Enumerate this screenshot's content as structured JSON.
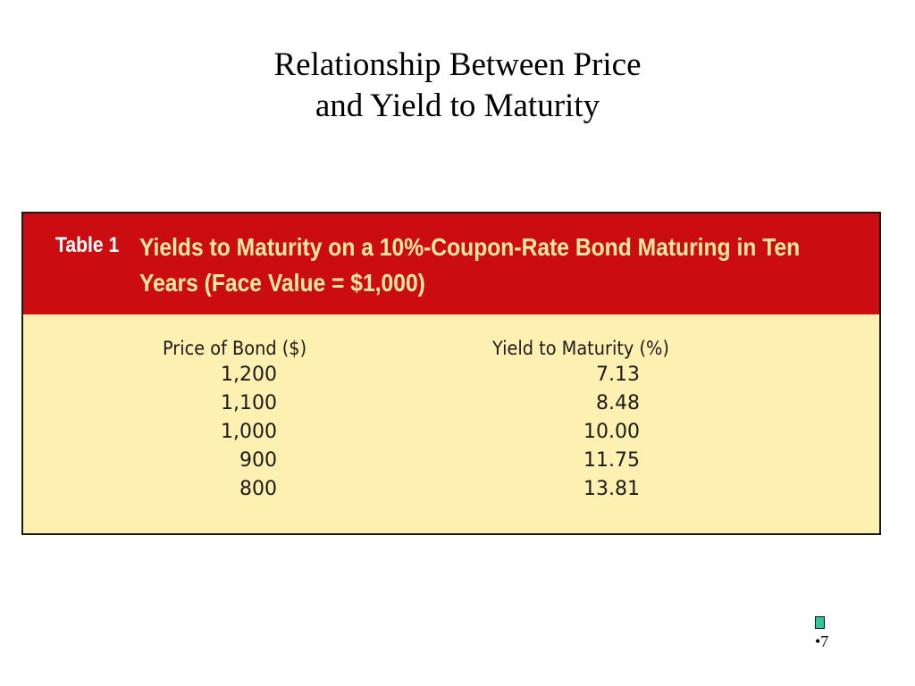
{
  "slide": {
    "title_line1": "Relationship Between Price",
    "title_line2": "and Yield to Maturity",
    "page_number": "•7"
  },
  "table": {
    "number_label": "Table 1",
    "caption_line1": "Yields to Maturity on a 10%-Coupon-Rate Bond Maturing in Ten",
    "caption_line2": "Years (Face Value = $1,000)",
    "columns": [
      "Price of Bond ($)",
      "Yield to Maturity (%)"
    ],
    "rows": [
      {
        "price": "1,200",
        "yield": "7.13"
      },
      {
        "price": "1,100",
        "yield": "8.48"
      },
      {
        "price": "1,000",
        "yield": "10.00"
      },
      {
        "price": "900",
        "yield": "11.75"
      },
      {
        "price": "800",
        "yield": "13.81"
      }
    ]
  },
  "colors": {
    "header_background": "#cb0d12",
    "header_text": "#fde9a0",
    "body_background": "#fdf0b0",
    "bullet": "#2ec79a"
  },
  "icons": {
    "bullet": "square-bullet-icon"
  }
}
